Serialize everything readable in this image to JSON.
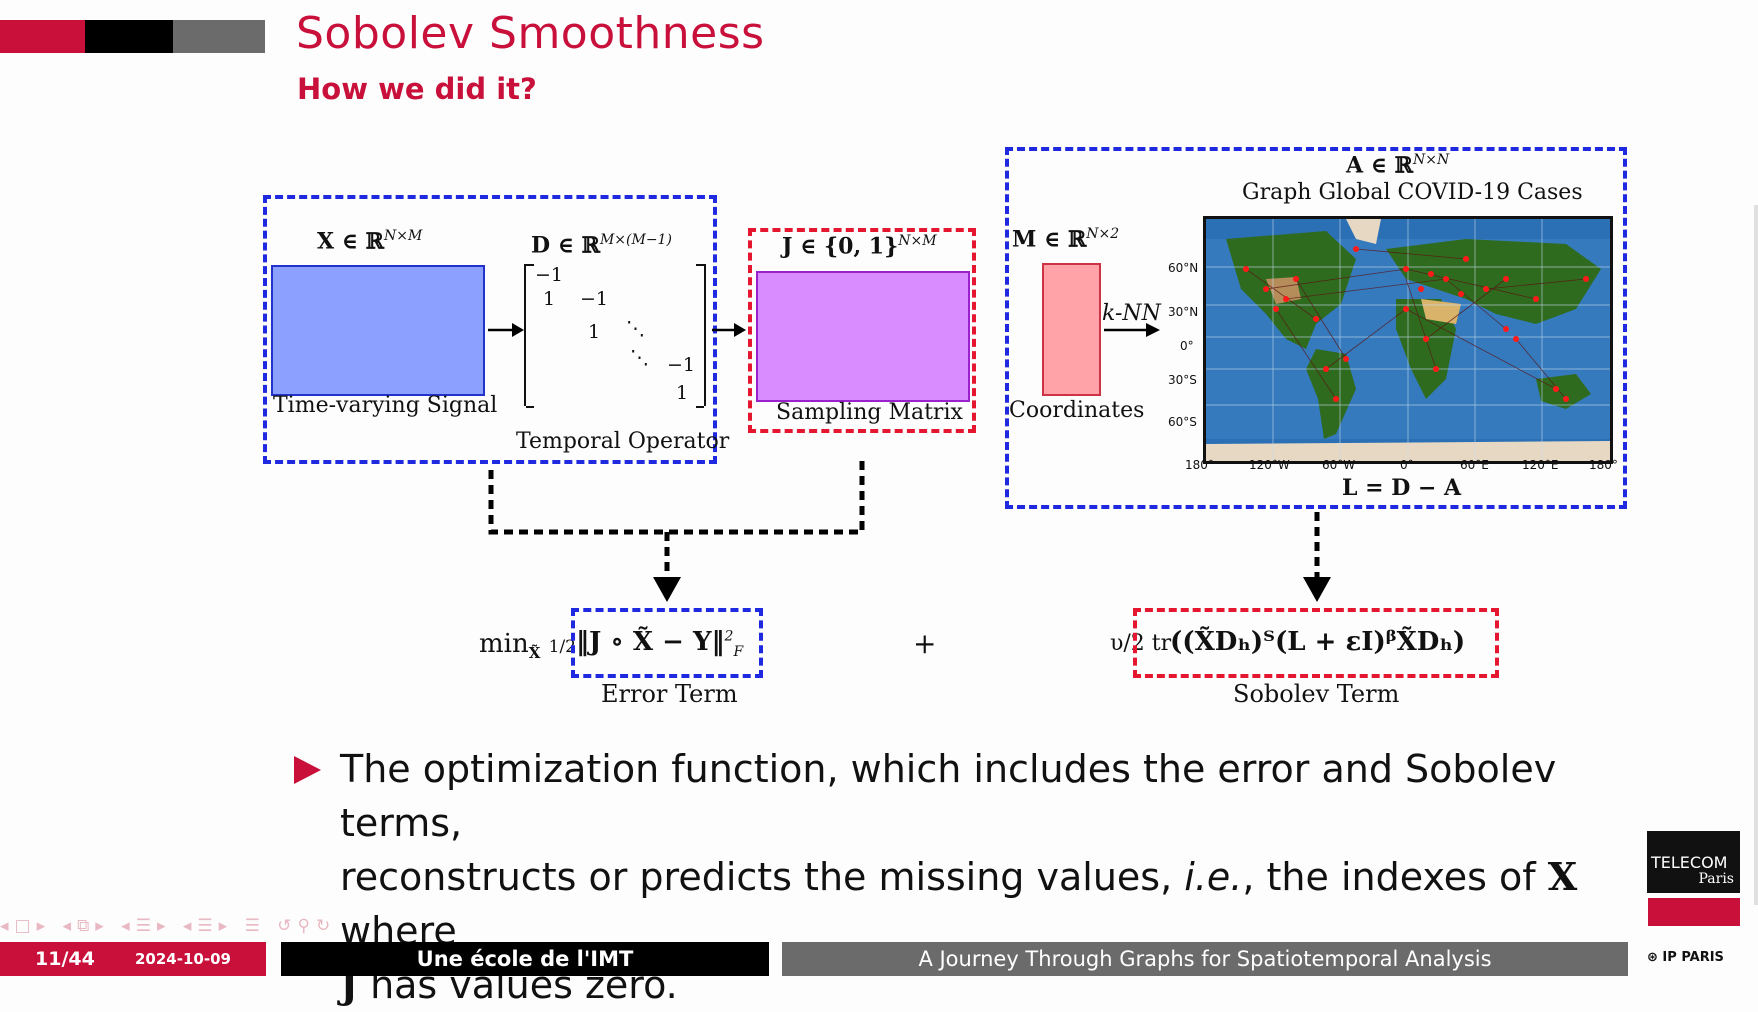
{
  "header": {
    "title": "Sobolev Smoothness",
    "subtitle": "How we did it?"
  },
  "diagram": {
    "x_label": "X ∈ ℝ",
    "x_sup": "N×M",
    "x_caption": "Time-varying Signal",
    "d_label": "D ∈ ℝ",
    "d_sup": "M×(M−1)",
    "d_caption": "Temporal Operator",
    "d_matrix": {
      "r1": "−1",
      "r2a": "1",
      "r2b": "−1",
      "r3a": "1",
      "r3b": "⋱",
      "r4a": "⋱",
      "r4b": "−1",
      "r5": "1"
    },
    "j_label": "J ∈ {0, 1}",
    "j_sup": "N×M",
    "j_caption": "Sampling Matrix",
    "m_label": "M ∈ ℝ",
    "m_sup": "N×2",
    "m_caption": "Coordinates",
    "knn_label": "k-NN",
    "a_label": "A ∈ ℝ",
    "a_sup": "N×N",
    "graph_title": "Graph Global COVID-19 Cases",
    "laplacian": "L = D − A",
    "map_lat_ticks": [
      "60°N",
      "30°N",
      "0°",
      "30°S",
      "60°S"
    ],
    "map_lon_ticks": [
      "180°",
      "120°W",
      "60°W",
      "0°",
      "60°E",
      "120°E",
      "180°"
    ]
  },
  "formula": {
    "min_prefix": "min",
    "min_sub": "X̃",
    "half": "1/2",
    "error_expr": "‖J ∘ X̃ − Y‖",
    "error_sup": "2",
    "error_sub": "F",
    "plus": "+",
    "sobolev_prefix": "υ/2 tr",
    "sobolev_expr": "((X̃Dₕ)ᵀ(L + εI)ᵝX̃Dₕ)",
    "error_caption": "Error Term",
    "sobolev_caption": "Sobolev Term"
  },
  "bullet": {
    "line1": "The optimization function, which includes the error and Sobolev terms,",
    "line2_a": "reconstructs or predicts the missing values, ",
    "line2_ie": "i.e.",
    "line2_b": ", the indexes of ",
    "line2_x": "X",
    "line2_c": " where",
    "line3_j": "J",
    "line3_b": " has values zero."
  },
  "footer": {
    "page": "11/44",
    "date": "2024-10-09",
    "institution": "Une école de l'IMT",
    "talk_title": "A Journey Through Graphs for Spatiotemporal Analysis"
  },
  "logos": {
    "telecom_line1": "TELECOM",
    "telecom_line2": "Paris",
    "ip_paris": "IP PARIS"
  },
  "colors": {
    "accent": "#c8103b",
    "blue_dash": "#1f29e0",
    "red_dash": "#e5162f",
    "x_fill": "#8ca0ff",
    "j_fill": "#d98cff",
    "m_fill": "#ffa3a8"
  }
}
